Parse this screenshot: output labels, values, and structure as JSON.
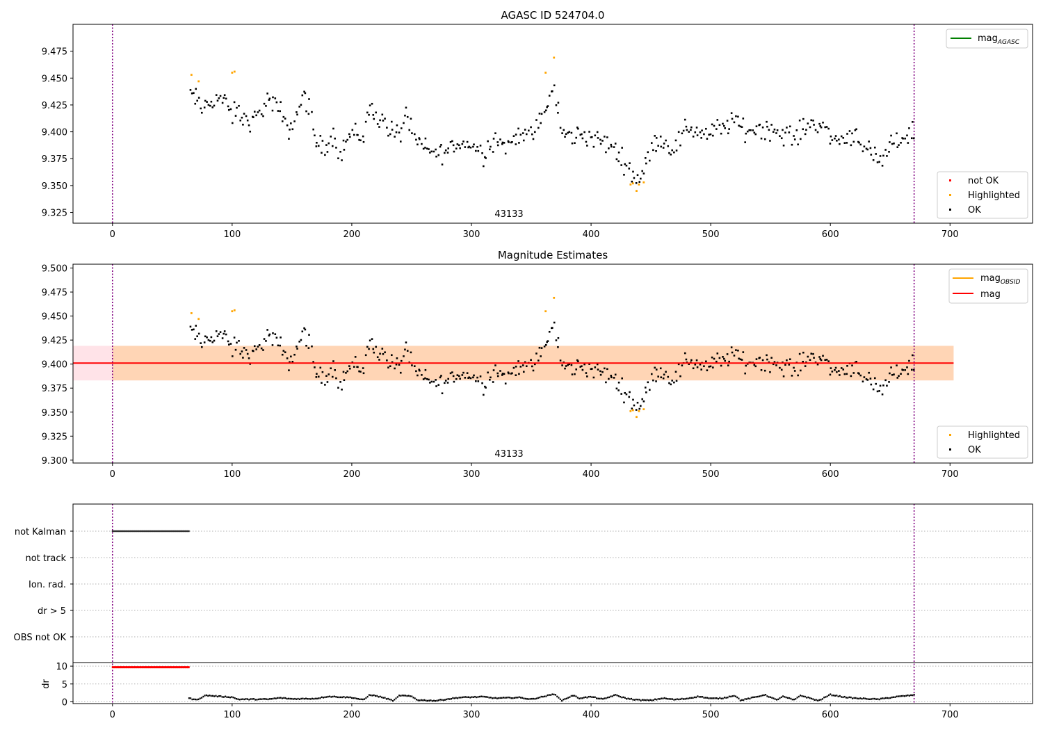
{
  "chart_data": [
    {
      "type": "scatter",
      "title": "AGASC ID 524704.0",
      "annotation": "43133",
      "xlim": [
        -33,
        769
      ],
      "ylim": [
        9.315,
        9.5
      ],
      "x_ticks": [
        0,
        100,
        200,
        300,
        400,
        500,
        600,
        700
      ],
      "y_ticks": [
        9.325,
        9.35,
        9.375,
        9.4,
        9.425,
        9.45,
        9.475
      ],
      "vlines": [
        0,
        670
      ],
      "legend_lines": [
        {
          "label": "mag",
          "sub": "AGASC",
          "color": "#008000"
        }
      ],
      "legend_points": [
        {
          "label": "not OK",
          "color": "#ff0000"
        },
        {
          "label": "Highlighted",
          "color": "#ffa500"
        },
        {
          "label": "OK",
          "color": "#000000"
        }
      ],
      "series": [
        {
          "name": "OK",
          "color": "#000000",
          "anchors": [
            [
              65,
              9.435
            ],
            [
              70,
              9.43
            ],
            [
              75,
              9.42
            ],
            [
              80,
              9.428
            ],
            [
              90,
              9.432
            ],
            [
              95,
              9.425
            ],
            [
              100,
              9.415
            ],
            [
              105,
              9.42
            ],
            [
              110,
              9.41
            ],
            [
              120,
              9.412
            ],
            [
              130,
              9.43
            ],
            [
              140,
              9.42
            ],
            [
              145,
              9.402
            ],
            [
              150,
              9.405
            ],
            [
              155,
              9.42
            ],
            [
              160,
              9.435
            ],
            [
              165,
              9.42
            ],
            [
              170,
              9.39
            ],
            [
              175,
              9.385
            ],
            [
              185,
              9.397
            ],
            [
              190,
              9.38
            ],
            [
              200,
              9.4
            ],
            [
              210,
              9.395
            ],
            [
              215,
              9.425
            ],
            [
              220,
              9.415
            ],
            [
              230,
              9.405
            ],
            [
              240,
              9.395
            ],
            [
              245,
              9.42
            ],
            [
              250,
              9.398
            ],
            [
              255,
              9.39
            ],
            [
              260,
              9.385
            ],
            [
              270,
              9.38
            ],
            [
              280,
              9.382
            ],
            [
              290,
              9.39
            ],
            [
              300,
              9.388
            ],
            [
              310,
              9.38
            ],
            [
              320,
              9.395
            ],
            [
              330,
              9.385
            ],
            [
              340,
              9.4
            ],
            [
              350,
              9.395
            ],
            [
              360,
              9.415
            ],
            [
              365,
              9.43
            ],
            [
              370,
              9.44
            ],
            [
              375,
              9.4
            ],
            [
              380,
              9.395
            ],
            [
              390,
              9.398
            ],
            [
              400,
              9.395
            ],
            [
              410,
              9.39
            ],
            [
              420,
              9.385
            ],
            [
              425,
              9.375
            ],
            [
              430,
              9.37
            ],
            [
              435,
              9.36
            ],
            [
              440,
              9.358
            ],
            [
              445,
              9.365
            ],
            [
              450,
              9.385
            ],
            [
              455,
              9.395
            ],
            [
              460,
              9.39
            ],
            [
              470,
              9.385
            ],
            [
              480,
              9.405
            ],
            [
              490,
              9.4
            ],
            [
              500,
              9.398
            ],
            [
              510,
              9.405
            ],
            [
              520,
              9.41
            ],
            [
              530,
              9.4
            ],
            [
              540,
              9.405
            ],
            [
              550,
              9.402
            ],
            [
              560,
              9.398
            ],
            [
              570,
              9.395
            ],
            [
              580,
              9.405
            ],
            [
              590,
              9.41
            ],
            [
              600,
              9.395
            ],
            [
              610,
              9.392
            ],
            [
              620,
              9.4
            ],
            [
              630,
              9.385
            ],
            [
              640,
              9.37
            ],
            [
              645,
              9.375
            ],
            [
              650,
              9.385
            ],
            [
              660,
              9.395
            ],
            [
              670,
              9.4
            ]
          ],
          "count": 480
        },
        {
          "name": "Highlighted",
          "color": "#ffa500",
          "points": [
            [
              66,
              9.453
            ],
            [
              72,
              9.447
            ],
            [
              100,
              9.455
            ],
            [
              102,
              9.456
            ],
            [
              362,
              9.455
            ],
            [
              369,
              9.469
            ],
            [
              433,
              9.351
            ],
            [
              435,
              9.352
            ],
            [
              438,
              9.345
            ],
            [
              440,
              9.351
            ],
            [
              444,
              9.353
            ]
          ]
        }
      ]
    },
    {
      "type": "scatter",
      "title": "Magnitude Estimates",
      "annotation": "43133",
      "xlim": [
        -33,
        769
      ],
      "ylim": [
        9.297,
        9.504
      ],
      "x_ticks": [
        0,
        100,
        200,
        300,
        400,
        500,
        600,
        700
      ],
      "y_ticks": [
        9.3,
        9.325,
        9.35,
        9.375,
        9.4,
        9.425,
        9.45,
        9.475,
        9.5
      ],
      "vlines": [
        0,
        670
      ],
      "mag_line": 9.401,
      "band_pink": {
        "x": [
          -33,
          703
        ],
        "y": [
          9.383,
          9.419
        ]
      },
      "band_orange": {
        "x": [
          0,
          703
        ],
        "y": [
          9.383,
          9.419
        ]
      },
      "legend_lines": [
        {
          "label": "mag",
          "sub": "OBSID",
          "color": "#ffa500"
        },
        {
          "label": "mag",
          "sub": "",
          "color": "#ff0000"
        }
      ],
      "legend_points": [
        {
          "label": "Highlighted",
          "color": "#ffa500"
        },
        {
          "label": "OK",
          "color": "#000000"
        }
      ],
      "series": [
        {
          "name": "OK",
          "color": "#000000",
          "same_as_panel": 0
        },
        {
          "name": "Highlighted",
          "color": "#ffa500",
          "same_as_panel": 0
        }
      ]
    },
    {
      "type": "scatter",
      "xlim": [
        -33,
        769
      ],
      "x_ticks": [
        0,
        100,
        200,
        300,
        400,
        500,
        600,
        700
      ],
      "vlines": [
        0,
        670
      ],
      "flag_labels": [
        "not Kalman",
        "not track",
        "Ion. rad.",
        "dr > 5",
        "OBS not OK"
      ],
      "flag_spans": [
        {
          "flag": "not Kalman",
          "x": [
            0,
            64
          ]
        }
      ],
      "dr_ylabel": "dr",
      "dr_ticks": [
        0,
        5,
        10
      ],
      "dr_ylim": [
        -0.5,
        11
      ],
      "dr_red_span": {
        "x": [
          0,
          64
        ],
        "y": 9.7
      },
      "dr_series": [
        [
          64,
          1.0
        ],
        [
          70,
          0.5
        ],
        [
          78,
          1.8
        ],
        [
          90,
          1.5
        ],
        [
          100,
          1.3
        ],
        [
          105,
          0.7
        ],
        [
          130,
          0.7
        ],
        [
          140,
          1.1
        ],
        [
          150,
          0.8
        ],
        [
          170,
          0.9
        ],
        [
          180,
          1.5
        ],
        [
          200,
          1.2
        ],
        [
          210,
          0.5
        ],
        [
          215,
          2.0
        ],
        [
          225,
          1.3
        ],
        [
          235,
          0.3
        ],
        [
          240,
          1.8
        ],
        [
          250,
          1.5
        ],
        [
          255,
          0.5
        ],
        [
          270,
          0.3
        ],
        [
          290,
          1.2
        ],
        [
          310,
          1.4
        ],
        [
          320,
          1.0
        ],
        [
          340,
          1.2
        ],
        [
          350,
          0.7
        ],
        [
          370,
          2.2
        ],
        [
          375,
          0.3
        ],
        [
          385,
          1.8
        ],
        [
          390,
          1.0
        ],
        [
          400,
          1.4
        ],
        [
          410,
          0.7
        ],
        [
          420,
          1.9
        ],
        [
          430,
          0.9
        ],
        [
          440,
          0.5
        ],
        [
          450,
          0.4
        ],
        [
          460,
          1.0
        ],
        [
          470,
          0.6
        ],
        [
          480,
          0.9
        ],
        [
          490,
          1.5
        ],
        [
          500,
          0.9
        ],
        [
          510,
          1.0
        ],
        [
          520,
          1.8
        ],
        [
          525,
          0.4
        ],
        [
          540,
          1.5
        ],
        [
          545,
          2.0
        ],
        [
          555,
          0.5
        ],
        [
          560,
          1.5
        ],
        [
          570,
          0.5
        ],
        [
          575,
          1.8
        ],
        [
          590,
          0.3
        ],
        [
          600,
          2.0
        ],
        [
          610,
          1.4
        ],
        [
          620,
          1.0
        ],
        [
          640,
          0.7
        ],
        [
          655,
          1.4
        ],
        [
          670,
          1.9
        ]
      ]
    }
  ]
}
